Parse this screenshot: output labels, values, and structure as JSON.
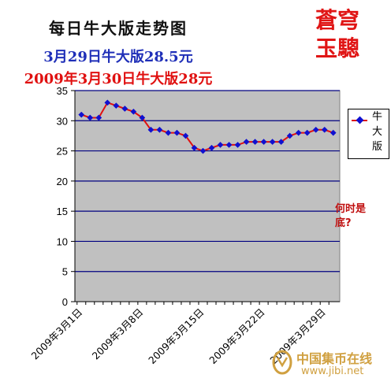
{
  "titles": {
    "main": "每日牛大版走势图",
    "line2": "3月29日牛大版28.5元",
    "line3": "2009年3月30日牛大版28元"
  },
  "brand": {
    "line1": "蒼穹",
    "line2": "玉驄"
  },
  "annotation": "何时是底?",
  "watermark": {
    "name": "中国集币在线",
    "url": "www.jibi.net"
  },
  "colors": {
    "plot_bg": "#c0c0c0",
    "grid": "#000080",
    "line": "#e01010",
    "marker": "#1010d0"
  },
  "chart_data": {
    "type": "line",
    "title": "每日牛大版走势图",
    "xlabel": "",
    "ylabel": "",
    "ylim": [
      0,
      35
    ],
    "yticks": [
      0,
      5,
      10,
      15,
      20,
      25,
      30,
      35
    ],
    "grid": true,
    "legend_position": "right",
    "x_tick_labels": [
      "2009年3月1日",
      "2009年3月8日",
      "2009年3月15日",
      "2009年3月22日",
      "2009年3月29日"
    ],
    "x_tick_days": [
      1,
      8,
      15,
      22,
      29
    ],
    "x_days": [
      1,
      2,
      3,
      4,
      5,
      6,
      7,
      8,
      9,
      10,
      11,
      12,
      13,
      14,
      15,
      16,
      17,
      18,
      19,
      20,
      21,
      22,
      23,
      24,
      25,
      26,
      27,
      28,
      29,
      30
    ],
    "series": [
      {
        "name": "牛大版",
        "values": [
          31,
          30.5,
          30.5,
          33,
          32.5,
          32,
          31.5,
          30.5,
          28.5,
          28.5,
          28,
          28,
          27.5,
          25.5,
          25,
          25.5,
          26,
          26,
          26,
          26.5,
          26.5,
          26.5,
          26.5,
          26.5,
          27.5,
          28,
          28,
          28.5,
          28.5,
          28
        ]
      }
    ]
  }
}
